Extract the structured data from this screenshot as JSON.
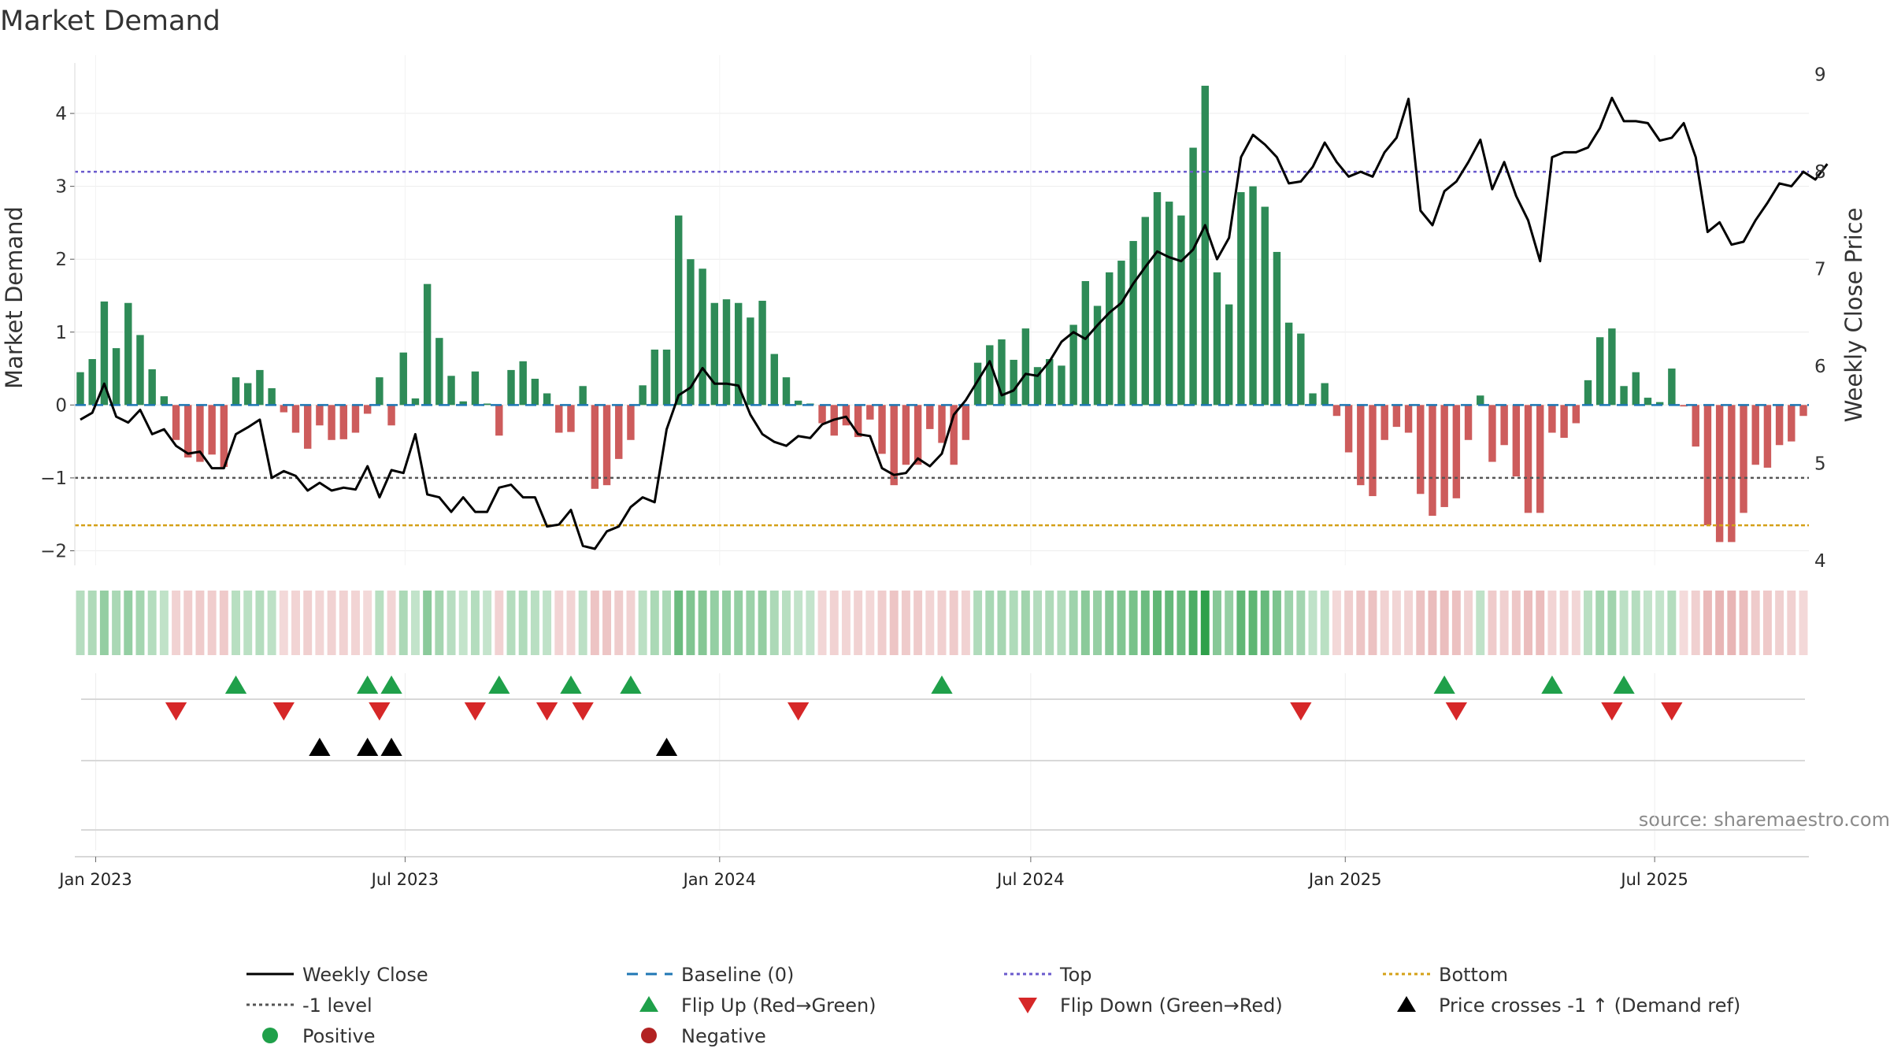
{
  "chart_data": {
    "type": "bar",
    "title": "Market Demand",
    "ylabel": "Market Demand",
    "y2label": "Weekly Close Price",
    "ylim": [
      -2.2,
      4.8
    ],
    "y2lim": [
      3.95,
      9.2
    ],
    "yticks": [
      "4",
      "3",
      "2",
      "1",
      "0",
      "−1",
      "−2"
    ],
    "y2ticks": [
      "9",
      "8",
      "7",
      "6",
      "5",
      "4"
    ],
    "x_ticks": [
      "Jan 2023",
      "Jul 2023",
      "Jan 2024",
      "Jul 2024",
      "Jan 2025",
      "Jul 2025"
    ],
    "x_start": "2022-12-23",
    "x_step_days": 7,
    "levels": {
      "top": 3.2,
      "minus1": -1.0,
      "bottom": -1.65,
      "baseline": 0
    },
    "colors": {
      "positive": "#2e8b57",
      "negative": "#cd5c5c",
      "line": "#000000",
      "top": "#6a5acd",
      "bottom": "#d4a017",
      "minus1": "#555555",
      "baseline": "#1f77b4",
      "flip_up": "#1fa04a",
      "flip_down": "#d62728",
      "cross": "#000000"
    },
    "series": [
      {
        "name": "Market Demand",
        "values": [
          0.45,
          0.63,
          1.42,
          0.78,
          1.4,
          0.96,
          0.49,
          0.12,
          -0.48,
          -0.72,
          -0.78,
          -0.68,
          -0.85,
          0.38,
          0.3,
          0.48,
          0.23,
          -0.1,
          -0.38,
          -0.6,
          -0.28,
          -0.48,
          -0.47,
          -0.38,
          -0.12,
          0.38,
          -0.28,
          0.72,
          0.09,
          1.66,
          0.92,
          0.4,
          0.05,
          0.46,
          0.02,
          -0.42,
          0.48,
          0.6,
          0.36,
          0.16,
          -0.38,
          -0.37,
          0.26,
          -1.15,
          -1.1,
          -0.74,
          -0.48,
          0.27,
          0.76,
          0.76,
          2.6,
          2.0,
          1.87,
          1.4,
          1.45,
          1.4,
          1.2,
          1.43,
          0.7,
          0.38,
          0.06,
          0.02,
          -0.25,
          -0.42,
          -0.28,
          -0.44,
          -0.2,
          -0.67,
          -1.1,
          -0.82,
          -0.82,
          -0.33,
          -0.52,
          -0.82,
          -0.48,
          0.58,
          0.82,
          0.9,
          0.62,
          1.05,
          0.52,
          0.63,
          0.54,
          1.1,
          1.7,
          1.36,
          1.82,
          1.98,
          2.25,
          2.58,
          2.92,
          2.79,
          2.6,
          3.53,
          4.38,
          1.82,
          1.38,
          2.92,
          3.0,
          2.72,
          2.1,
          1.13,
          0.98,
          0.16,
          0.3,
          -0.15,
          -0.65,
          -1.1,
          -1.25,
          -0.48,
          -0.3,
          -0.38,
          -1.22,
          -1.52,
          -1.4,
          -1.28,
          -0.48,
          0.13,
          -0.78,
          -0.55,
          -0.98,
          -1.48,
          -1.48,
          -0.38,
          -0.45,
          -0.25,
          0.34,
          0.93,
          1.05,
          0.26,
          0.45,
          0.1,
          0.04,
          0.5,
          -0.02,
          -0.57,
          -1.65,
          -1.88,
          -1.88,
          -1.48,
          -0.82,
          -0.86,
          -0.55,
          -0.5,
          -0.15
        ]
      },
      {
        "name": "Weekly Close",
        "values": [
          5.45,
          5.52,
          5.82,
          5.48,
          5.42,
          5.55,
          5.3,
          5.35,
          5.18,
          5.1,
          5.12,
          4.95,
          4.95,
          5.3,
          5.37,
          5.45,
          4.85,
          4.92,
          4.87,
          4.72,
          4.8,
          4.72,
          4.75,
          4.73,
          4.97,
          4.65,
          4.93,
          4.9,
          5.3,
          4.68,
          4.65,
          4.5,
          4.65,
          4.5,
          4.5,
          4.75,
          4.78,
          4.65,
          4.65,
          4.35,
          4.37,
          4.52,
          4.15,
          4.12,
          4.3,
          4.35,
          4.55,
          4.65,
          4.6,
          5.35,
          5.7,
          5.78,
          5.98,
          5.82,
          5.82,
          5.8,
          5.5,
          5.3,
          5.22,
          5.18,
          5.28,
          5.26,
          5.4,
          5.45,
          5.48,
          5.3,
          5.28,
          4.95,
          4.88,
          4.9,
          5.05,
          4.97,
          5.1,
          5.5,
          5.65,
          5.85,
          6.05,
          5.7,
          5.75,
          5.92,
          5.9,
          6.05,
          6.25,
          6.35,
          6.28,
          6.42,
          6.55,
          6.65,
          6.85,
          7.02,
          7.18,
          7.12,
          7.08,
          7.2,
          7.45,
          7.1,
          7.32,
          8.15,
          8.38,
          8.28,
          8.15,
          7.88,
          7.9,
          8.05,
          8.3,
          8.1,
          7.95,
          8.0,
          7.95,
          8.2,
          8.35,
          8.75,
          7.6,
          7.45,
          7.8,
          7.9,
          8.1,
          8.33,
          7.82,
          8.1,
          7.75,
          7.5,
          7.08,
          8.15,
          8.2,
          8.2,
          8.25,
          8.45,
          8.76,
          8.52,
          8.52,
          8.5,
          8.32,
          8.35,
          8.5,
          8.15,
          7.38,
          7.48,
          7.25,
          7.28,
          7.5,
          7.68,
          7.88,
          7.85,
          8.0,
          7.92,
          8.08
        ]
      }
    ],
    "strip_values": [
      0.45,
      0.63,
      1.42,
      0.78,
      1.4,
      0.96,
      0.49,
      0.12,
      -0.48,
      -0.72,
      -0.78,
      -0.68,
      -0.85,
      0.38,
      0.3,
      0.48,
      0.23,
      -0.1,
      -0.38,
      -0.6,
      -0.28,
      -0.48,
      -0.47,
      -0.38,
      -0.12,
      0.38,
      -0.28,
      0.72,
      0.09,
      1.66,
      0.92,
      0.4,
      0.05,
      0.46,
      0.02,
      -0.42,
      0.48,
      0.6,
      0.36,
      0.16,
      -0.38,
      -0.37,
      0.26,
      -1.15,
      -1.1,
      -0.74,
      -0.48,
      0.27,
      0.76,
      0.76,
      2.6,
      2.0,
      1.87,
      1.4,
      1.45,
      1.4,
      1.2,
      1.43,
      0.7,
      0.38,
      0.06,
      0.02,
      -0.25,
      -0.42,
      -0.28,
      -0.44,
      -0.2,
      -0.67,
      -1.1,
      -0.82,
      -0.82,
      -0.33,
      -0.52,
      -0.82,
      -0.48,
      0.58,
      0.82,
      0.9,
      0.62,
      1.05,
      0.52,
      0.63,
      0.54,
      1.1,
      1.7,
      1.36,
      1.82,
      1.98,
      2.25,
      2.58,
      2.92,
      2.79,
      2.6,
      3.53,
      4.38,
      1.82,
      1.38,
      2.92,
      3.0,
      2.72,
      2.1,
      1.13,
      0.98,
      0.16,
      0.3,
      -0.15,
      -0.65,
      -1.1,
      -1.25,
      -0.48,
      -0.3,
      -0.38,
      -1.22,
      -1.52,
      -1.4,
      -1.28,
      -0.48,
      0.13,
      -0.78,
      -0.55,
      -0.98,
      -1.48,
      -1.48,
      -0.38,
      -0.45,
      -0.25,
      0.34,
      0.93,
      1.05,
      0.26,
      0.45,
      0.1,
      0.04,
      0.5,
      -0.02,
      -0.57,
      -1.65,
      -1.88,
      -1.88,
      -1.48,
      -0.82,
      -0.86,
      -0.55,
      -0.5,
      -0.15
    ],
    "flip_up_weeks": [
      13,
      24,
      26,
      35,
      41,
      46,
      72,
      114,
      123,
      129
    ],
    "flip_down_weeks": [
      8,
      17,
      25,
      33,
      39,
      42,
      60,
      102,
      115,
      128,
      133
    ],
    "cross_weeks": [
      20,
      24,
      26,
      49
    ],
    "legend": [
      {
        "label": "Weekly Close",
        "symbol": "line-solid",
        "color": "#000000"
      },
      {
        "label": "Baseline (0)",
        "symbol": "line-dash",
        "color": "#1f77b4"
      },
      {
        "label": "Top",
        "symbol": "line-dot",
        "color": "#6a5acd"
      },
      {
        "label": "Bottom",
        "symbol": "line-dot",
        "color": "#d4a017"
      },
      {
        "label": "-1 level",
        "symbol": "line-dot",
        "color": "#555555"
      },
      {
        "label": "Flip Up (Red→Green)",
        "symbol": "triangle-up",
        "color": "#1fa04a"
      },
      {
        "label": "Flip Down (Green→Red)",
        "symbol": "triangle-down",
        "color": "#d62728"
      },
      {
        "label": "Price crosses -1 ↑ (Demand ref)",
        "symbol": "triangle-up",
        "color": "#000000"
      },
      {
        "label": "Positive",
        "symbol": "circle",
        "color": "#1fa04a"
      },
      {
        "label": "Negative",
        "symbol": "circle",
        "color": "#b22222"
      }
    ],
    "source": "source: sharemaestro.com"
  }
}
